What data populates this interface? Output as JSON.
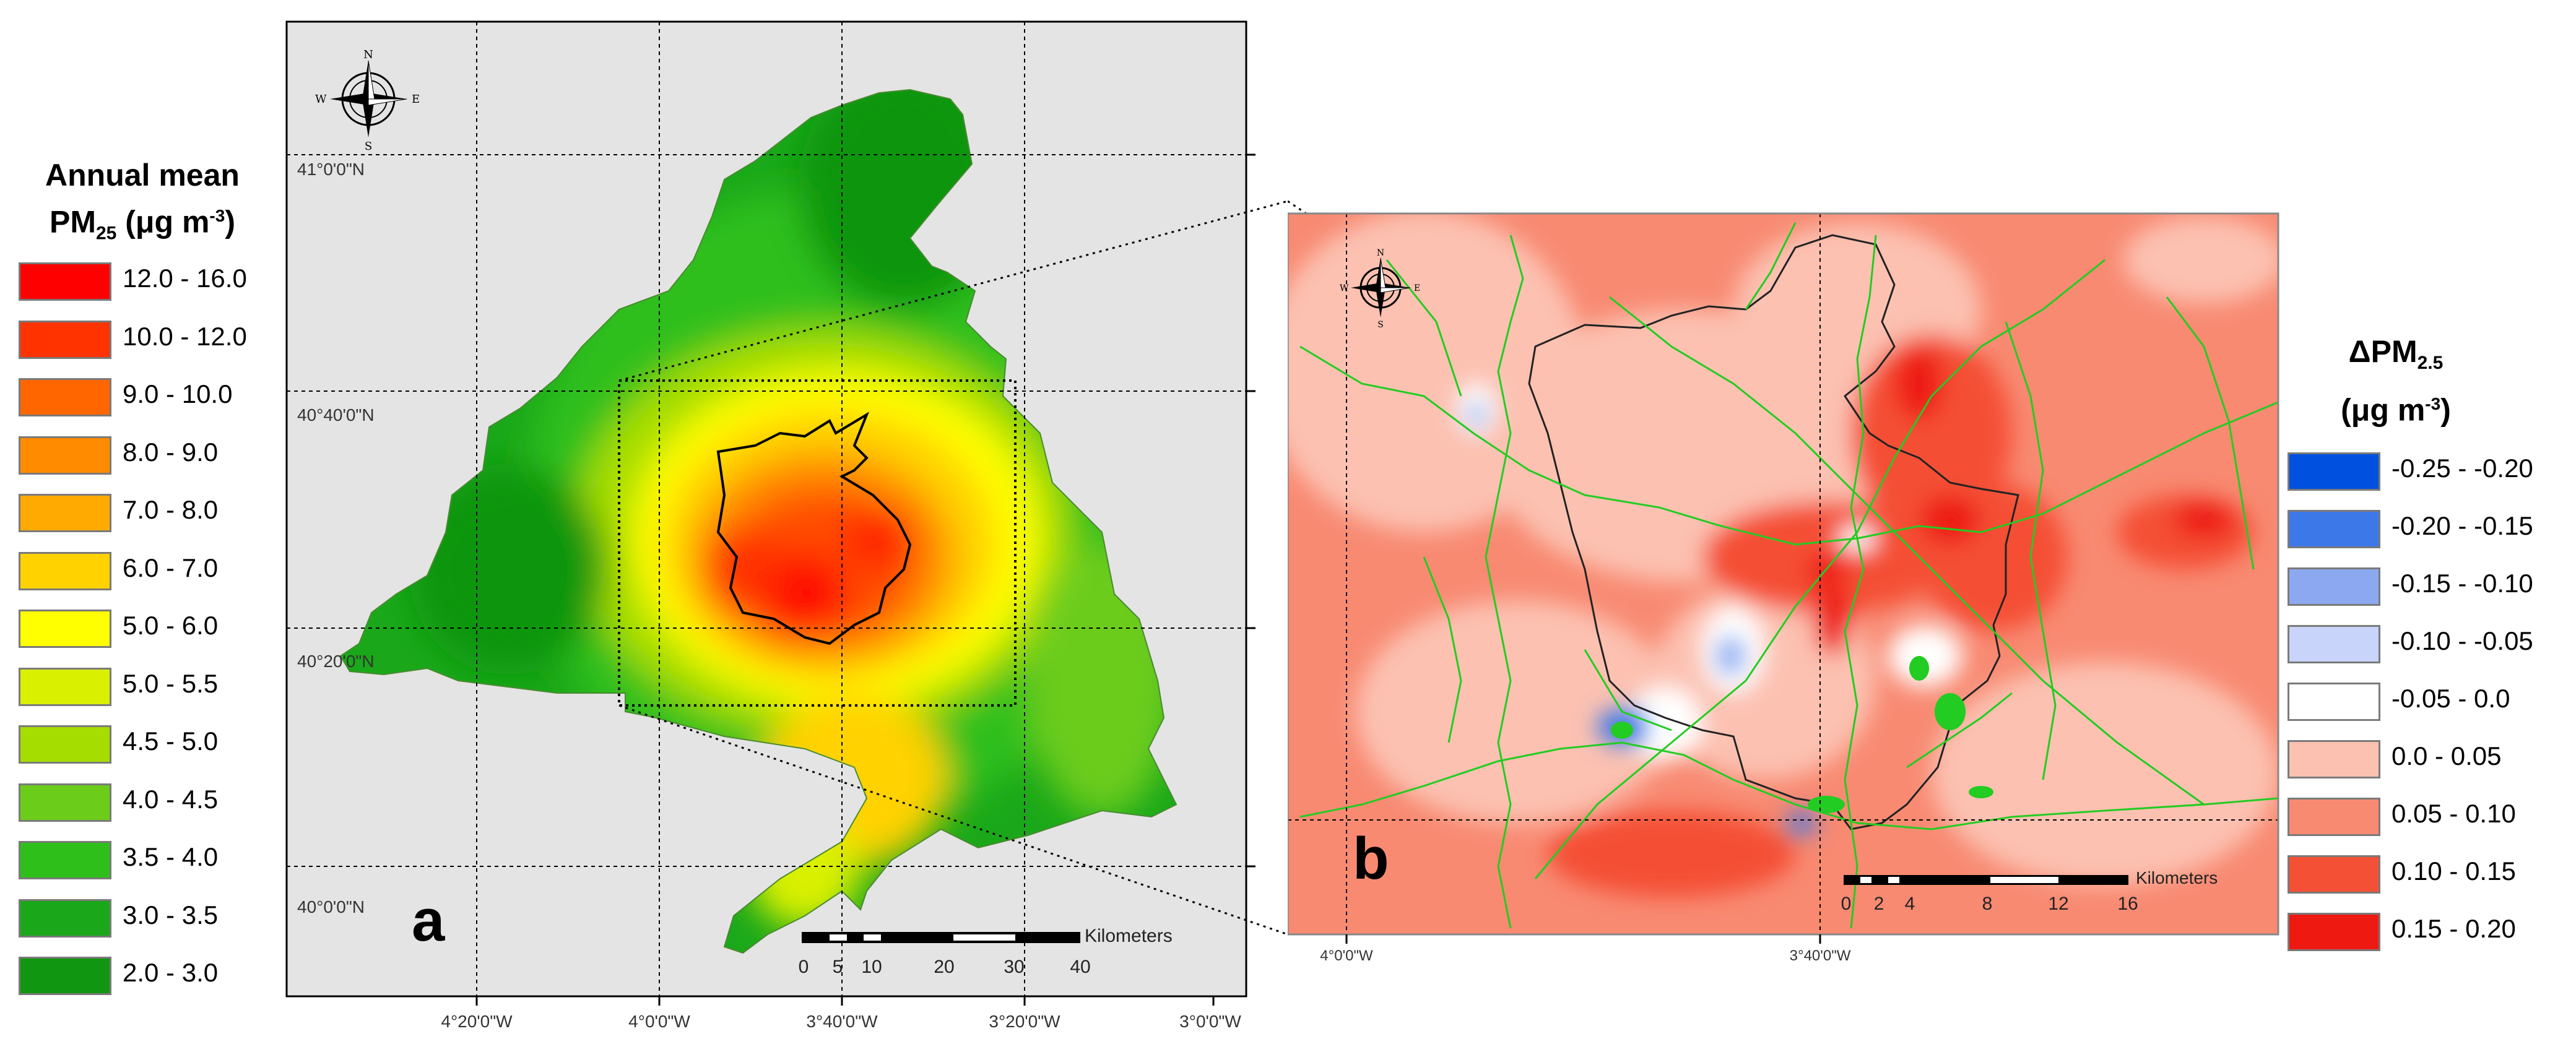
{
  "legend_a": {
    "title_line1": "Annual mean",
    "title_pm": "PM",
    "title_pm_sub": "25",
    "title_unit": "(μg m",
    "title_unit_sup": "-3",
    "title_unit_close": ")",
    "items": [
      {
        "label": "12.0 - 16.0",
        "color": "#ff0000"
      },
      {
        "label": "10.0 - 12.0",
        "color": "#ff3300"
      },
      {
        "label": "9.0 - 10.0",
        "color": "#ff6600"
      },
      {
        "label": "8.0 - 9.0",
        "color": "#ff8c00"
      },
      {
        "label": "7.0 - 8.0",
        "color": "#ffaa00"
      },
      {
        "label": "6.0 - 7.0",
        "color": "#ffd200"
      },
      {
        "label": "5.0 - 6.0",
        "color": "#ffff00"
      },
      {
        "label": "5.0 - 5.5",
        "color": "#d9f000"
      },
      {
        "label": "4.5 - 5.0",
        "color": "#a6dd00"
      },
      {
        "label": "4.0 - 4.5",
        "color": "#6ccc1a"
      },
      {
        "label": "3.5 - 4.0",
        "color": "#2fbf1a"
      },
      {
        "label": "3.0 - 3.5",
        "color": "#1aa81a"
      },
      {
        "label": "2.0 - 3.0",
        "color": "#119611"
      }
    ]
  },
  "legend_b": {
    "title_delta": "ΔPM",
    "title_sub": "2.5",
    "title_unit": "(μg m",
    "title_unit_sup": "-3",
    "title_unit_close": ")",
    "items": [
      {
        "label": "-0.25 - -0.20",
        "color": "#0050e0"
      },
      {
        "label": "-0.20 - -0.15",
        "color": "#3c78e8"
      },
      {
        "label": "-0.15 - -0.10",
        "color": "#8ca8f0"
      },
      {
        "label": "-0.10 - -0.05",
        "color": "#c8d4fa"
      },
      {
        "label": "-0.05 - 0.0",
        "color": "#ffffff"
      },
      {
        "label": "0.0 - 0.05",
        "color": "#fcc1b1"
      },
      {
        "label": "0.05 - 0.10",
        "color": "#f88a72"
      },
      {
        "label": "0.10 - 0.15",
        "color": "#f45035"
      },
      {
        "label": "0.15 - 0.20",
        "color": "#ee1a12"
      }
    ]
  },
  "map_a": {
    "panel_letter": "a",
    "lat_labels": [
      "41°0'0\"N",
      "40°40'0\"N",
      "40°20'0\"N",
      "40°0'0\"N"
    ],
    "lon_labels": [
      "4°20'0\"W",
      "4°0'0\"W",
      "3°40'0\"W",
      "3°20'0\"W",
      "3°0'0\"W"
    ],
    "scale_unit": "Kilometers",
    "scale_ticks": [
      "0",
      "5",
      "10",
      "20",
      "30",
      "40"
    ],
    "compass": {
      "n": "N",
      "s": "S",
      "e": "E",
      "w": "W"
    }
  },
  "map_b": {
    "panel_letter": "b",
    "lon_labels": [
      "4°0'0\"W",
      "3°40'0\"W"
    ],
    "scale_unit": "Kilometers",
    "scale_ticks": [
      "0",
      "2",
      "4",
      "8",
      "12",
      "16"
    ],
    "compass": {
      "n": "N",
      "s": "S",
      "e": "E",
      "w": "W"
    }
  }
}
